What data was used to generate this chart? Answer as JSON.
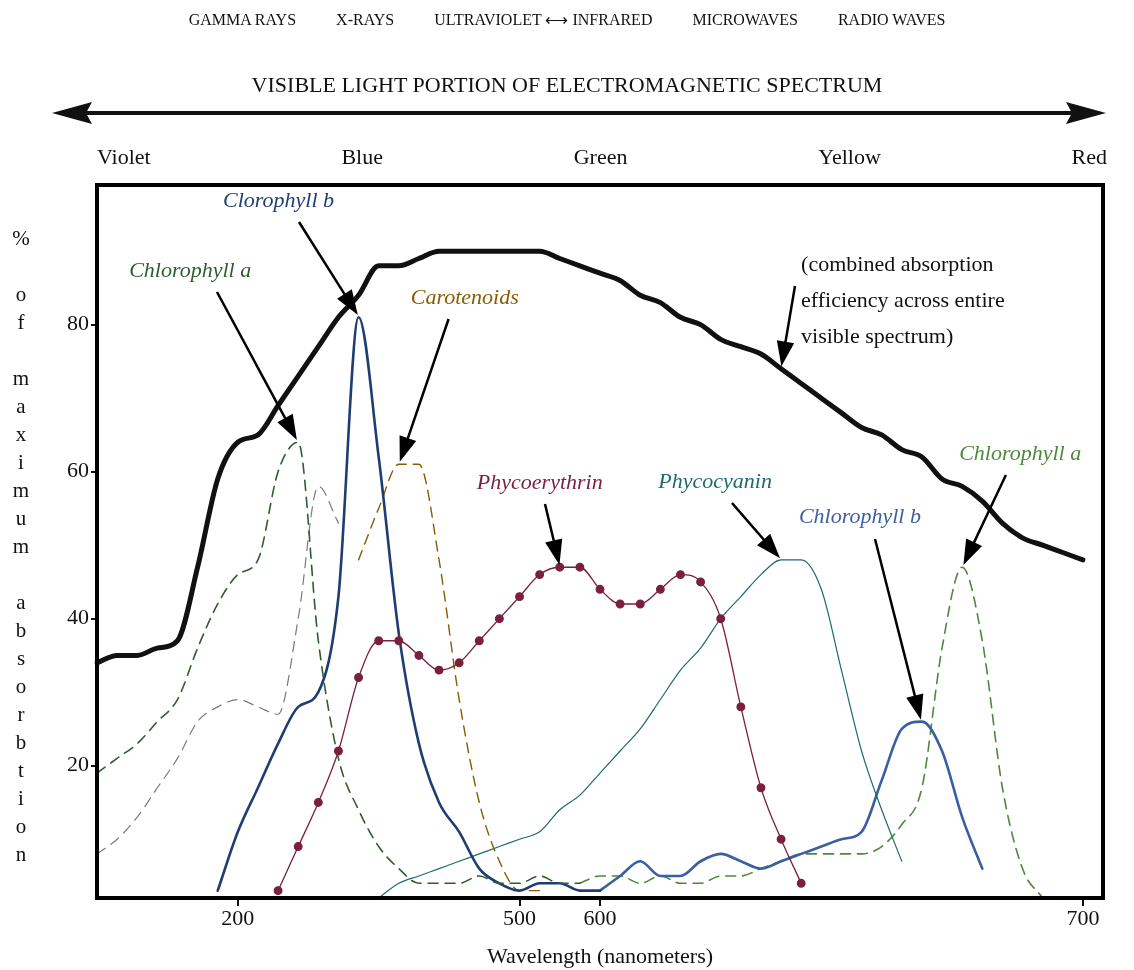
{
  "chart_data": {
    "type": "line",
    "title": "VISIBLE LIGHT PORTION OF ELECTROMAGNETIC SPECTRUM",
    "subtitle": "GAMMA RAYS          X-RAYS          ULTRAVIOLET ⟷ INFRARED          MICROWAVES          RADIO WAVES",
    "xlabel": "Wavelength (nanometers)",
    "ylabel": "% of maximum absorbtion",
    "annotations": [
      "Violet",
      "Blue",
      "Green",
      "Yellow",
      "Red"
    ],
    "categories": [
      null,
      null,
      null,
      null,
      null,
      null,
      null,
      "200",
      null,
      null,
      null,
      null,
      null,
      null,
      null,
      null,
      null,
      null,
      null,
      null,
      null,
      "500",
      null,
      null,
      null,
      "600",
      null,
      null,
      null,
      null,
      null,
      null,
      null,
      null,
      null,
      null,
      null,
      null,
      null,
      null,
      null,
      null,
      null,
      null,
      null,
      null,
      null,
      null,
      null,
      "700",
      null
    ],
    "ylim": [
      2,
      99
    ],
    "yticks": [
      20,
      40,
      60,
      80
    ],
    "series": [
      {
        "name": "(combined absorption efficiency across entire visible spectrum)",
        "color": "#111111",
        "line_style": "solid",
        "values": [
          34,
          35,
          35,
          36,
          37,
          47,
          59,
          64,
          65,
          69,
          73,
          77,
          81,
          84,
          88,
          88,
          89,
          90,
          90,
          90,
          90,
          90,
          90,
          89,
          88,
          87,
          86,
          84,
          83,
          81,
          80,
          78,
          77,
          76,
          74,
          72,
          70,
          68,
          66,
          65,
          63,
          62,
          59,
          58,
          56,
          53,
          51,
          50,
          49,
          48,
          null
        ]
      },
      {
        "name": "Chlorophyll a",
        "color": "#2e5e2e",
        "line_style": "dashed",
        "values": [
          19,
          21,
          23,
          26,
          29,
          36,
          42,
          46,
          48,
          60,
          64,
          37,
          21,
          14,
          9,
          6,
          4,
          4,
          4,
          5,
          4,
          4,
          5,
          4,
          4,
          null,
          null,
          null,
          null,
          null,
          null,
          null,
          null,
          null,
          null,
          null,
          null,
          null,
          null,
          null,
          null,
          null,
          null,
          null,
          null,
          null,
          null,
          null,
          null,
          null,
          null
        ]
      },
      {
        "color": "#7a7a7a",
        "line_style": "dashed",
        "values": [
          8,
          10,
          13,
          17,
          21,
          26,
          28,
          29,
          28,
          27,
          40,
          58,
          53,
          null,
          null,
          null,
          null,
          null,
          null,
          null,
          null,
          null,
          null,
          null,
          null,
          null,
          null,
          null,
          null,
          null,
          null,
          null,
          null,
          null,
          null,
          null,
          null,
          null,
          null,
          null,
          null,
          null,
          null,
          null,
          null,
          null,
          null,
          null,
          null,
          null,
          null
        ]
      },
      {
        "name": "Clorophyll b",
        "color": "#1f3d70",
        "line_style": "solid",
        "values": [
          null,
          null,
          null,
          null,
          null,
          null,
          3,
          11,
          17,
          23,
          28,
          30,
          43,
          81,
          62,
          38,
          23,
          15,
          11,
          6,
          4,
          3,
          4,
          4,
          3,
          3,
          null,
          null,
          null,
          null,
          null,
          null,
          null,
          null,
          null,
          null,
          null,
          null,
          null,
          null,
          null,
          null,
          null,
          null,
          null,
          null,
          null,
          null,
          null,
          null,
          null
        ]
      },
      {
        "name": "Carotenoids",
        "color": "#8a5a00",
        "line_style": "dashed",
        "values": [
          null,
          null,
          null,
          null,
          null,
          null,
          null,
          null,
          null,
          null,
          null,
          null,
          null,
          48,
          55,
          61,
          61,
          48,
          29,
          15,
          7,
          3,
          3,
          null,
          null,
          null,
          null,
          null,
          null,
          null,
          null,
          null,
          null,
          null,
          null,
          null,
          null,
          null,
          null,
          null,
          null,
          null,
          null,
          null,
          null,
          null,
          null,
          null,
          null,
          null,
          null
        ]
      },
      {
        "name": "Phycoerythrin",
        "color": "#7a1f3d",
        "line_style": "solid",
        "marker": "circle",
        "values": [
          null,
          null,
          null,
          null,
          null,
          null,
          null,
          null,
          null,
          3,
          9,
          15,
          22,
          32,
          37,
          37,
          35,
          33,
          34,
          37,
          40,
          43,
          46,
          47,
          47,
          44,
          42,
          42,
          44,
          46,
          45,
          40,
          28,
          17,
          10,
          4,
          null,
          null,
          null,
          null,
          null,
          null,
          null,
          null,
          null,
          null,
          null,
          null,
          null,
          null,
          null
        ]
      },
      {
        "name": "Phycocyanin",
        "color": "#1f6b6b",
        "line_style": "solid",
        "values": [
          null,
          null,
          null,
          null,
          null,
          null,
          null,
          null,
          null,
          null,
          null,
          null,
          null,
          null,
          2,
          4,
          5,
          6,
          7,
          8,
          9,
          10,
          11,
          14,
          16,
          19,
          22,
          25,
          29,
          33,
          36,
          40,
          43,
          46,
          48,
          48,
          44,
          33,
          22,
          14,
          7,
          null,
          null,
          null,
          null,
          null,
          null,
          null,
          null,
          null,
          null
        ]
      },
      {
        "name": "Chlorophyll b",
        "color": "#3a5fa0",
        "line_style": "solid",
        "values": [
          null,
          null,
          null,
          null,
          null,
          null,
          null,
          null,
          null,
          null,
          null,
          null,
          null,
          null,
          null,
          null,
          null,
          null,
          null,
          null,
          null,
          null,
          null,
          null,
          null,
          3,
          5,
          7,
          5,
          5,
          7,
          8,
          7,
          6,
          7,
          8,
          9,
          10,
          11,
          18,
          25,
          26,
          22,
          13,
          6,
          null,
          null,
          null,
          null,
          null,
          null
        ]
      },
      {
        "name": "Chlorophyll a",
        "color": "#4a8a3a",
        "line_style": "dashed",
        "values": [
          null,
          null,
          null,
          null,
          null,
          null,
          null,
          null,
          null,
          null,
          null,
          null,
          null,
          null,
          null,
          null,
          null,
          null,
          null,
          null,
          null,
          null,
          null,
          null,
          4,
          5,
          5,
          4,
          5,
          4,
          4,
          5,
          5,
          6,
          7,
          8,
          8,
          8,
          8,
          9,
          12,
          17,
          36,
          47,
          37,
          17,
          6,
          2,
          null,
          null,
          null
        ]
      }
    ]
  }
}
